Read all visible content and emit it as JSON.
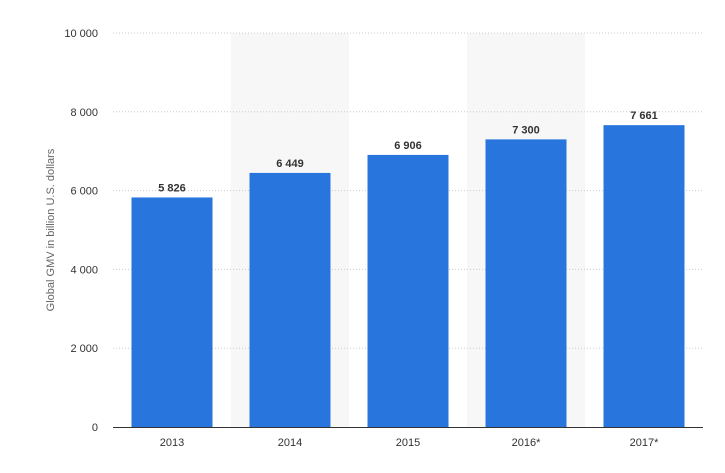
{
  "chart_data": {
    "type": "bar",
    "categories": [
      "2013",
      "2014",
      "2015",
      "2016*",
      "2017*"
    ],
    "values": [
      5826,
      6449,
      6906,
      7300,
      7661
    ],
    "value_labels": [
      "5 826",
      "6 449",
      "6 906",
      "7 300",
      "7 661"
    ],
    "ylabel": "Global GMV in billion U.S. dollars",
    "xlabel": "",
    "ylim": [
      0,
      10000
    ],
    "yticks": [
      0,
      2000,
      4000,
      6000,
      8000,
      10000
    ],
    "ytick_labels": [
      "0",
      "2 000",
      "4 000",
      "6 000",
      "8 000",
      "10 000"
    ],
    "grid": true,
    "bar_color": "#2876dd",
    "band_color": "#f7f7f7",
    "grid_color": "#cccccc"
  }
}
